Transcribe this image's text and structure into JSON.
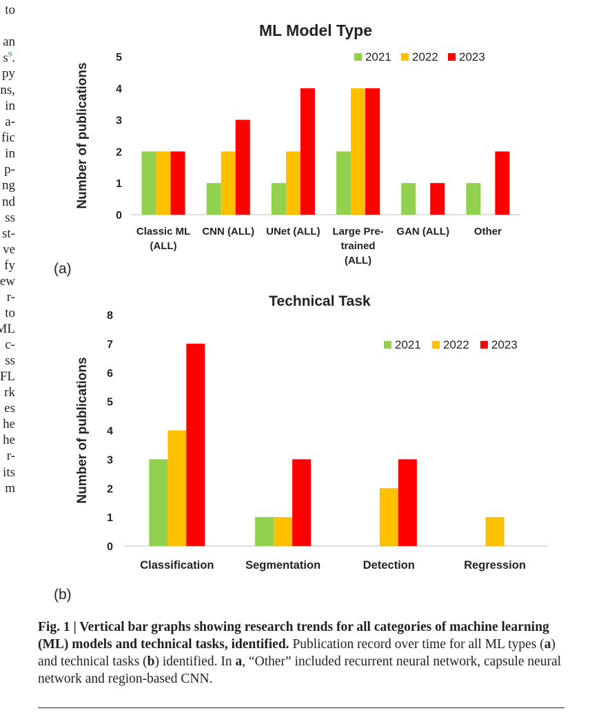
{
  "left_text_fragments": [
    "to",
    "an",
    "s",
    "py",
    "ns,",
    "in",
    "a-",
    "fic",
    "in",
    "p-",
    "ng",
    "nd",
    "ss",
    "st-",
    "ve",
    "fy",
    "ew",
    "r-",
    "to",
    "ML",
    "c-",
    "ss",
    "FL",
    "rk",
    "es",
    "he",
    "he",
    "r-",
    "its",
    "m"
  ],
  "left_text_citation": "9",
  "panel_labels": {
    "a": "(a)",
    "b": "(b)"
  },
  "colors": {
    "2021": "#92d050",
    "2022": "#ffc000",
    "2023": "#ff0000"
  },
  "chart_data": [
    {
      "type": "bar",
      "title": "ML Model Type",
      "ylabel": "Number of publications",
      "xlabel": "",
      "ylim": [
        0,
        5
      ],
      "yticks": [
        "0",
        "1",
        "2",
        "3",
        "4",
        "5"
      ],
      "categories": [
        "Classic ML (ALL)",
        "CNN (ALL)",
        "UNet (ALL)",
        "Large Pre-trained (ALL)",
        "GAN (ALL)",
        "Other"
      ],
      "category_lines": [
        [
          "Classic ML",
          "(ALL)"
        ],
        [
          "CNN (ALL)"
        ],
        [
          "UNet (ALL)"
        ],
        [
          "Large Pre-",
          "trained",
          "(ALL)"
        ],
        [
          "GAN (ALL)"
        ],
        [
          "Other"
        ]
      ],
      "series": [
        {
          "name": "2021",
          "values": [
            2,
            1,
            1,
            2,
            1,
            1
          ]
        },
        {
          "name": "2022",
          "values": [
            2,
            2,
            2,
            4,
            0,
            0
          ]
        },
        {
          "name": "2023",
          "values": [
            2,
            3,
            4,
            4,
            1,
            2
          ]
        }
      ],
      "grid": false,
      "legend": "top-right"
    },
    {
      "type": "bar",
      "title": "Technical Task",
      "ylabel": "Number of publications",
      "xlabel": "",
      "ylim": [
        0,
        8
      ],
      "yticks": [
        "0",
        "1",
        "2",
        "3",
        "4",
        "5",
        "6",
        "7",
        "8"
      ],
      "categories": [
        "Classification",
        "Segmentation",
        "Detection",
        "Regression"
      ],
      "category_lines": [
        [
          "Classification"
        ],
        [
          "Segmentation"
        ],
        [
          "Detection"
        ],
        [
          "Regression"
        ]
      ],
      "series": [
        {
          "name": "2021",
          "values": [
            3,
            1,
            0,
            0
          ]
        },
        {
          "name": "2022",
          "values": [
            4,
            1,
            2,
            1
          ]
        },
        {
          "name": "2023",
          "values": [
            7,
            3,
            3,
            0
          ]
        }
      ],
      "grid": false,
      "legend": "top-right"
    }
  ],
  "caption": {
    "label": "Fig. 1 | Vertical bar graphs showing research trends for all categories of machine learning (ML) models and technical tasks, identified.",
    "text_1": " Publication record over time for all ML types (",
    "ref_a": "a",
    "text_2": ") and technical tasks (",
    "ref_b": "b",
    "text_3": ") identified. In ",
    "ref_a2": "a",
    "text_4": ", “Other” included recurrent neural network, capsule neural network and region-based CNN."
  }
}
